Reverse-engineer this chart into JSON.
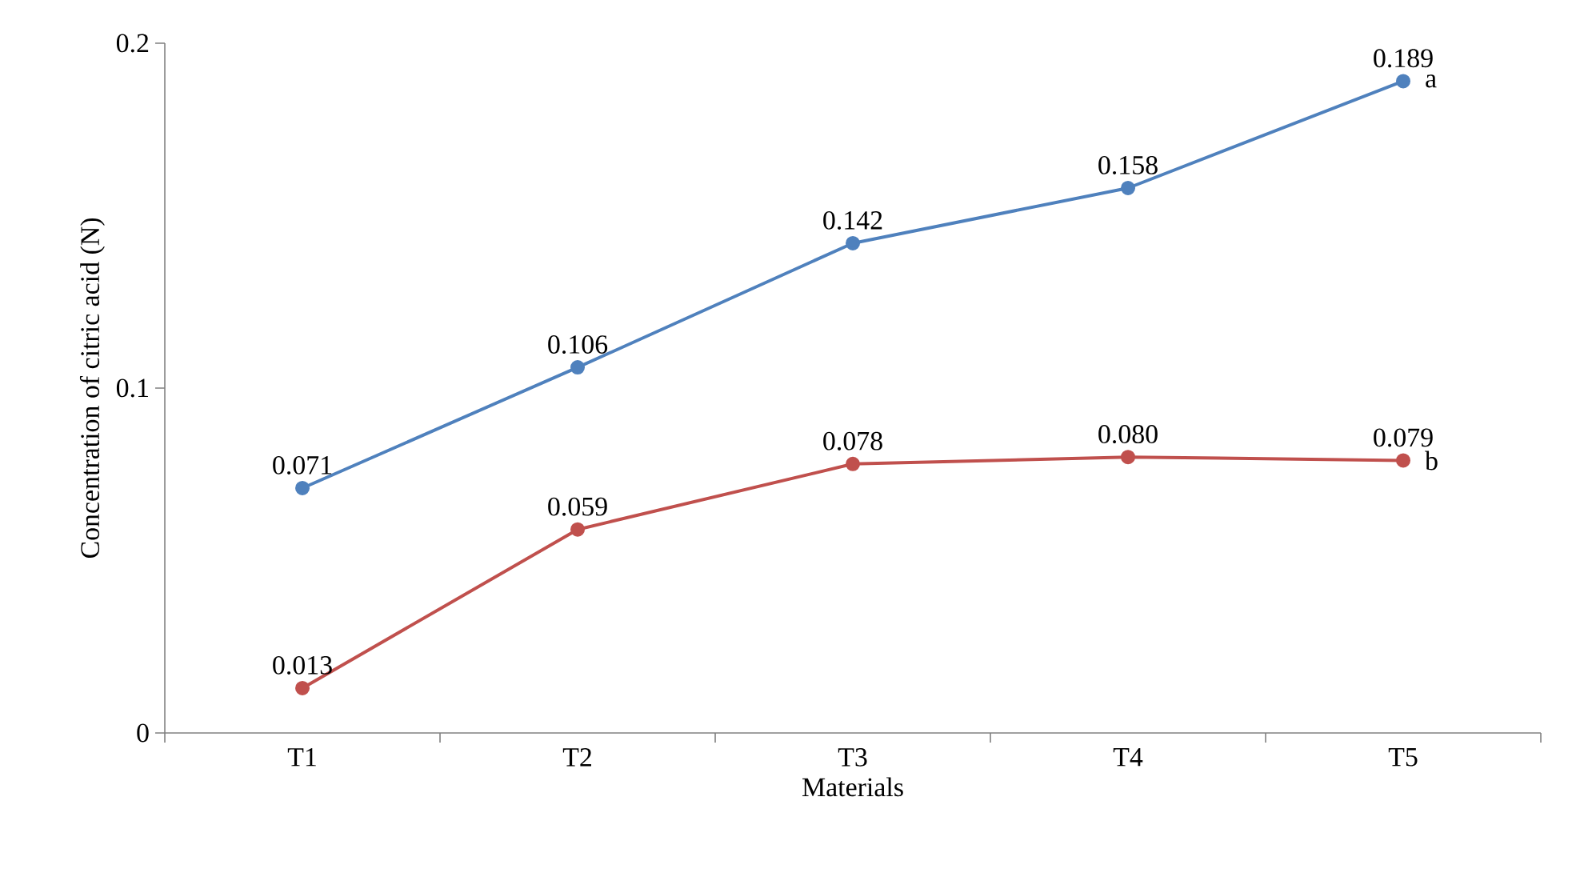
{
  "chart_data": {
    "type": "line",
    "xlabel": "Materials",
    "ylabel": "Concentration of citric acid (N)",
    "categories": [
      "T1",
      "T2",
      "T3",
      "T4",
      "T5"
    ],
    "series": [
      {
        "name": "a",
        "color": "#4f81bd",
        "values": [
          0.071,
          0.106,
          0.142,
          0.158,
          0.189
        ],
        "value_labels": [
          "0.071",
          "0.106",
          "0.142",
          "0.158",
          "0.189"
        ]
      },
      {
        "name": "b",
        "color": "#c0504d",
        "values": [
          0.013,
          0.059,
          0.078,
          0.08,
          0.079
        ],
        "value_labels": [
          "0.013",
          "0.059",
          "0.078",
          "0.080",
          "0.079"
        ]
      }
    ],
    "ylim": [
      0,
      0.2
    ],
    "yticks": [
      0,
      0.1,
      0.2
    ],
    "marker": "circle",
    "line_style": "solid",
    "grid": false
  }
}
